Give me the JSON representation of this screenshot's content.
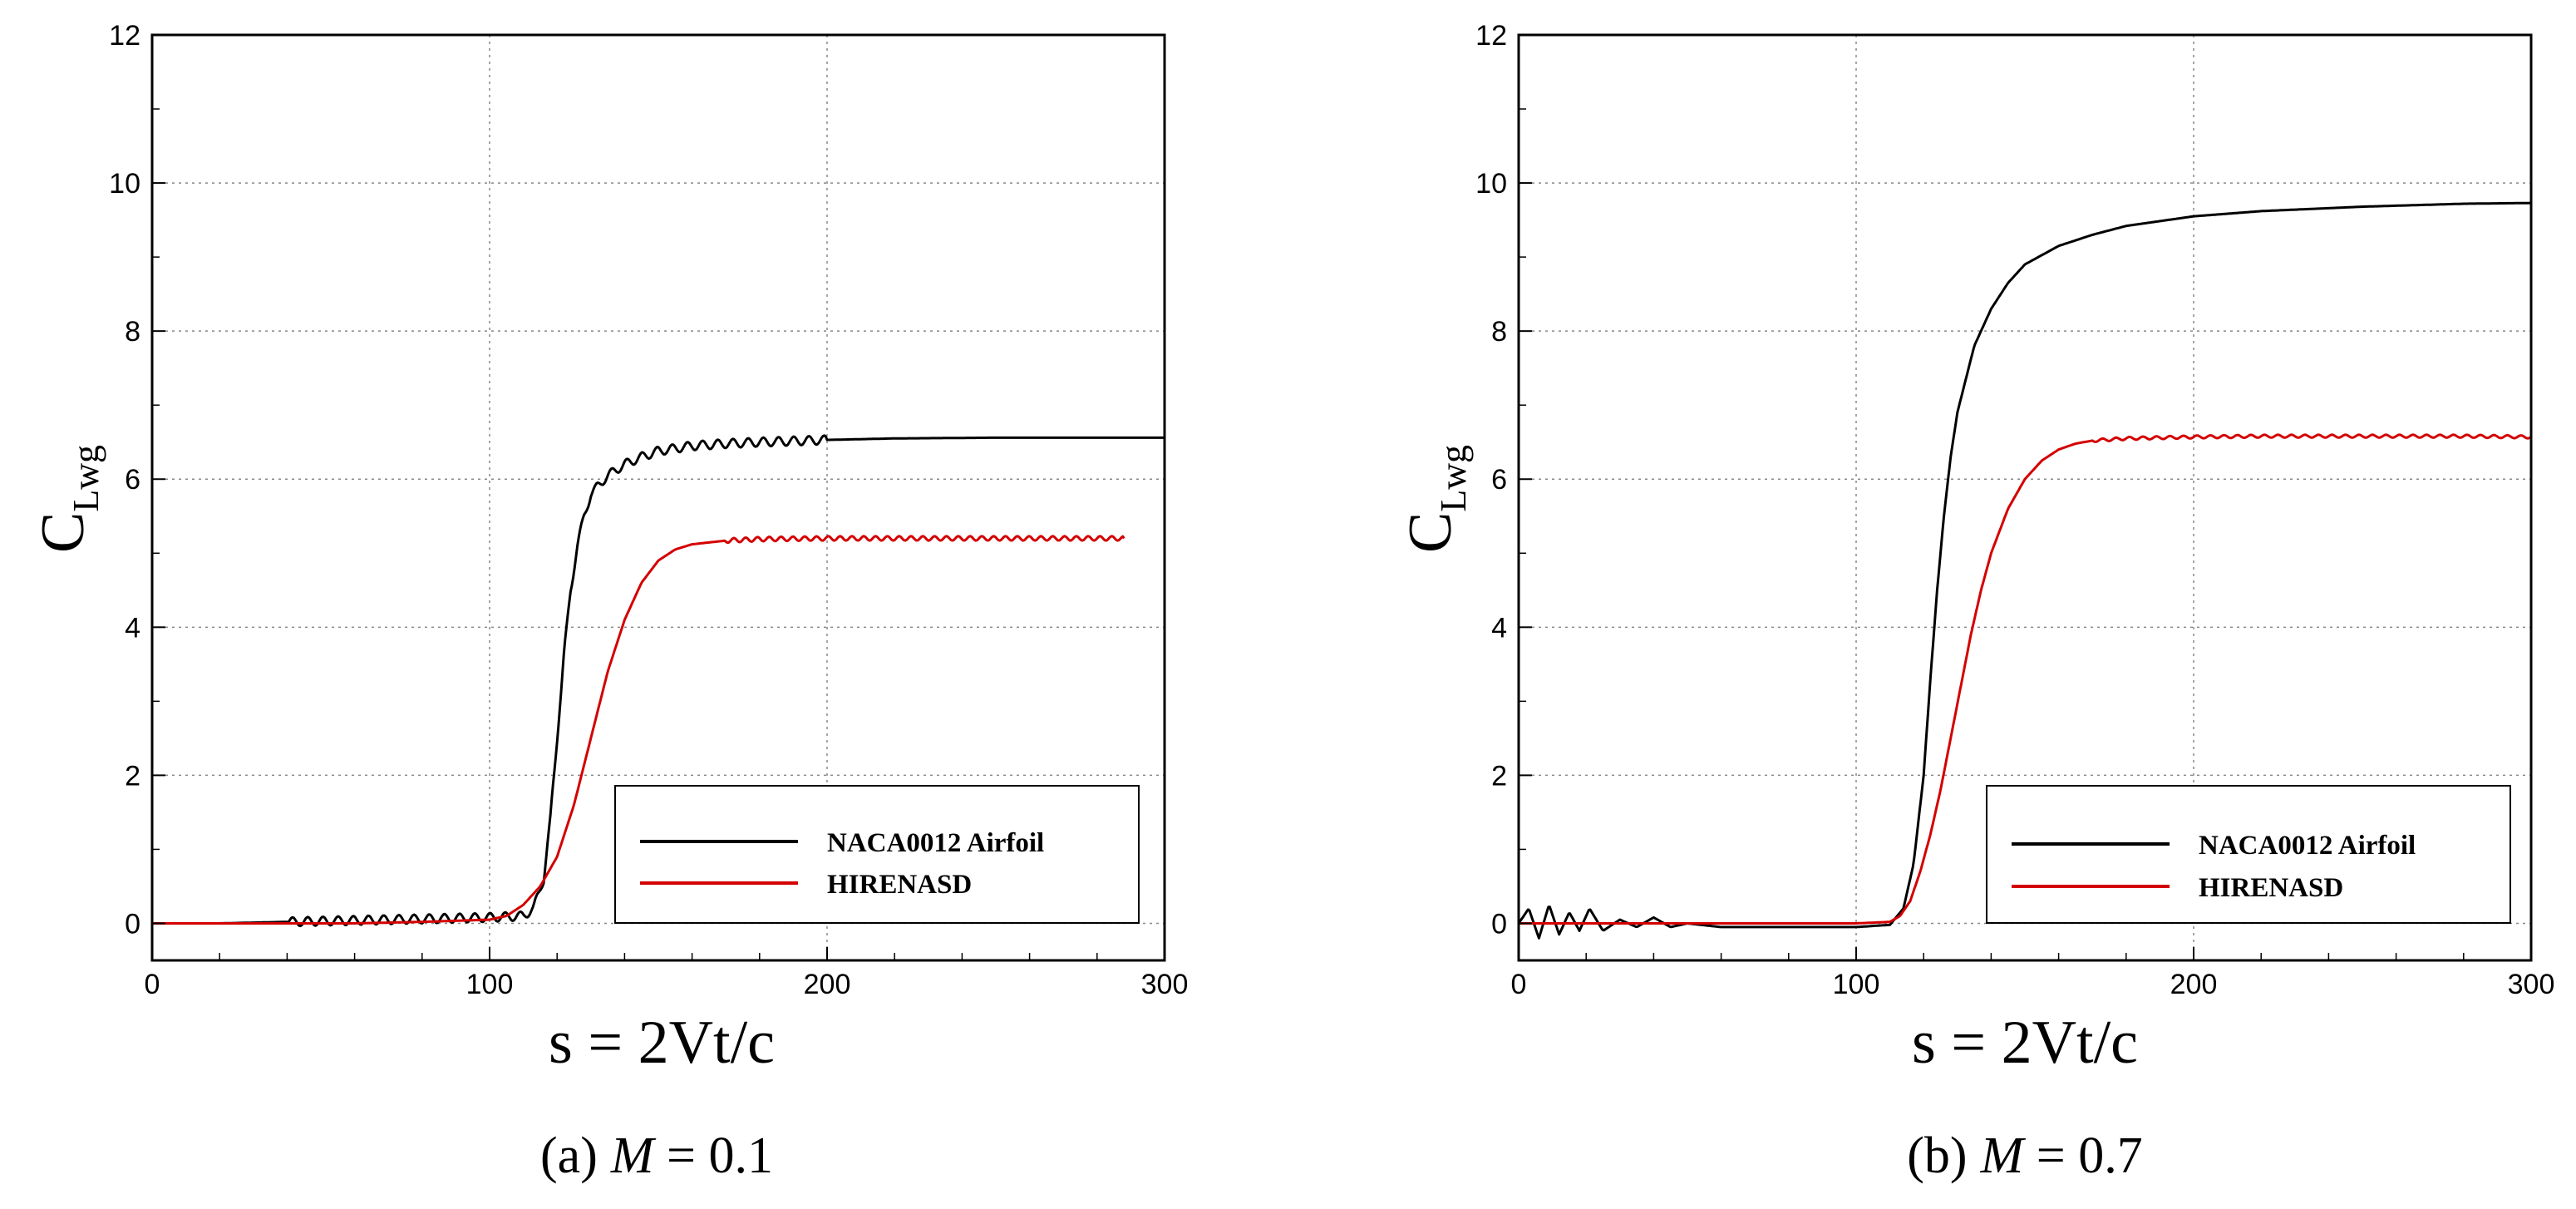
{
  "chart_data": [
    {
      "type": "line",
      "id": "a",
      "caption_label": "(a)",
      "caption_var": "M",
      "caption_eq": " = 0.1",
      "xlabel": "s = 2Vt/c",
      "ylabel_main": "C",
      "ylabel_sub": "Lwg",
      "xlim": [
        0,
        300
      ],
      "ylim": [
        -0.5,
        12
      ],
      "xticks": [
        0,
        100,
        200,
        300
      ],
      "yticks": [
        0,
        2,
        4,
        6,
        8,
        10,
        12
      ],
      "grid": true,
      "legend_position": "bottom-right",
      "series": [
        {
          "name": "NACA0012 Airfoil",
          "color": "#000000",
          "x": [
            0,
            20,
            40,
            60,
            80,
            100,
            110,
            113,
            116,
            118,
            120,
            122,
            124,
            126,
            128,
            130,
            135,
            140,
            145,
            150,
            160,
            170,
            180,
            200,
            220,
            250,
            280,
            300
          ],
          "y": [
            0,
            0,
            0.02,
            0.04,
            0.06,
            0.08,
            0.1,
            0.2,
            0.6,
            1.4,
            2.5,
            3.6,
            4.5,
            5.1,
            5.5,
            5.8,
            6.05,
            6.2,
            6.3,
            6.38,
            6.45,
            6.48,
            6.5,
            6.53,
            6.55,
            6.56,
            6.56,
            6.56
          ],
          "oscillation": {
            "from": 40,
            "to": 200,
            "amplitude": 0.06,
            "period": 4.5
          }
        },
        {
          "name": "HIRENASD",
          "color": "#d40000",
          "x": [
            0,
            20,
            40,
            60,
            80,
            100,
            105,
            110,
            115,
            120,
            125,
            130,
            135,
            140,
            145,
            150,
            155,
            160,
            170,
            180,
            200,
            220,
            250,
            288
          ],
          "y": [
            0,
            0,
            0,
            0,
            0.02,
            0.05,
            0.1,
            0.25,
            0.5,
            0.9,
            1.6,
            2.5,
            3.4,
            4.1,
            4.6,
            4.9,
            5.05,
            5.12,
            5.17,
            5.19,
            5.2,
            5.2,
            5.2,
            5.2
          ],
          "oscillation": {
            "from": 170,
            "to": 288,
            "amplitude": 0.03,
            "period": 3.5
          }
        }
      ]
    },
    {
      "type": "line",
      "id": "b",
      "caption_label": "(b)",
      "caption_var": "M",
      "caption_eq": " = 0.7",
      "xlabel": "s = 2Vt/c",
      "ylabel_main": "C",
      "ylabel_sub": "Lwg",
      "xlim": [
        0,
        300
      ],
      "ylim": [
        -0.5,
        12
      ],
      "xticks": [
        0,
        100,
        200,
        300
      ],
      "yticks": [
        0,
        2,
        4,
        6,
        8,
        10,
        12
      ],
      "grid": true,
      "legend_position": "bottom-right",
      "series": [
        {
          "name": "NACA0012 Airfoil",
          "color": "#000000",
          "x": [
            0,
            3,
            6,
            9,
            12,
            15,
            18,
            21,
            25,
            30,
            35,
            40,
            45,
            50,
            60,
            80,
            100,
            110,
            114,
            117,
            120,
            122,
            124,
            126,
            128,
            130,
            135,
            140,
            145,
            150,
            160,
            170,
            180,
            200,
            220,
            250,
            280,
            300
          ],
          "y": [
            0,
            0.2,
            -0.2,
            0.25,
            -0.15,
            0.15,
            -0.1,
            0.2,
            -0.1,
            0.05,
            -0.05,
            0.08,
            -0.05,
            0,
            -0.05,
            -0.05,
            -0.05,
            -0.02,
            0.2,
            0.8,
            2.0,
            3.3,
            4.5,
            5.5,
            6.3,
            6.9,
            7.8,
            8.3,
            8.65,
            8.9,
            9.15,
            9.3,
            9.42,
            9.55,
            9.62,
            9.68,
            9.72,
            9.73
          ]
        },
        {
          "name": "HIRENASD",
          "color": "#d40000",
          "x": [
            0,
            20,
            40,
            60,
            80,
            100,
            110,
            113,
            116,
            119,
            122,
            125,
            128,
            131,
            134,
            137,
            140,
            145,
            150,
            155,
            160,
            165,
            170,
            180,
            200,
            220,
            250,
            280,
            300
          ],
          "y": [
            0,
            0,
            0,
            0,
            0,
            0,
            0.02,
            0.1,
            0.3,
            0.7,
            1.2,
            1.8,
            2.5,
            3.2,
            3.9,
            4.5,
            5.0,
            5.6,
            6.0,
            6.25,
            6.4,
            6.48,
            6.52,
            6.55,
            6.57,
            6.58,
            6.58,
            6.58,
            6.57
          ],
          "oscillation": {
            "from": 170,
            "to": 300,
            "amplitude": 0.02,
            "period": 4
          }
        }
      ]
    }
  ]
}
